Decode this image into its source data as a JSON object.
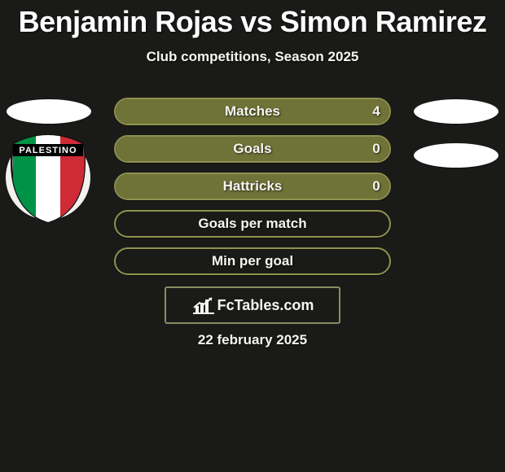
{
  "title": "Benjamin Rojas vs Simon Ramirez",
  "subtitle": "Club competitions, Season 2025",
  "date": "22 february 2025",
  "brand": "FcTables.com",
  "colors": {
    "background": "#1a1b18",
    "border_olive": "#8f914e",
    "fill_olive": "#6f7338",
    "text": "#f5f5f1",
    "avatar_bg": "#ffffff"
  },
  "badge": {
    "label": "PALESTINO",
    "ring": "#f3f2ef",
    "stripes": [
      "#009246",
      "#ffffff",
      "#ce2b37"
    ],
    "label_bg": "#000000"
  },
  "stats": [
    {
      "label": "Matches",
      "left_value": "",
      "right_value": "4",
      "fill_side": "right",
      "fill_pct": 100
    },
    {
      "label": "Goals",
      "left_value": "",
      "right_value": "0",
      "fill_side": "right",
      "fill_pct": 100
    },
    {
      "label": "Hattricks",
      "left_value": "",
      "right_value": "0",
      "fill_side": "right",
      "fill_pct": 100
    },
    {
      "label": "Goals per match",
      "left_value": "",
      "right_value": "",
      "fill_side": "none",
      "fill_pct": 0
    },
    {
      "label": "Min per goal",
      "left_value": "",
      "right_value": "",
      "fill_side": "none",
      "fill_pct": 0
    }
  ]
}
